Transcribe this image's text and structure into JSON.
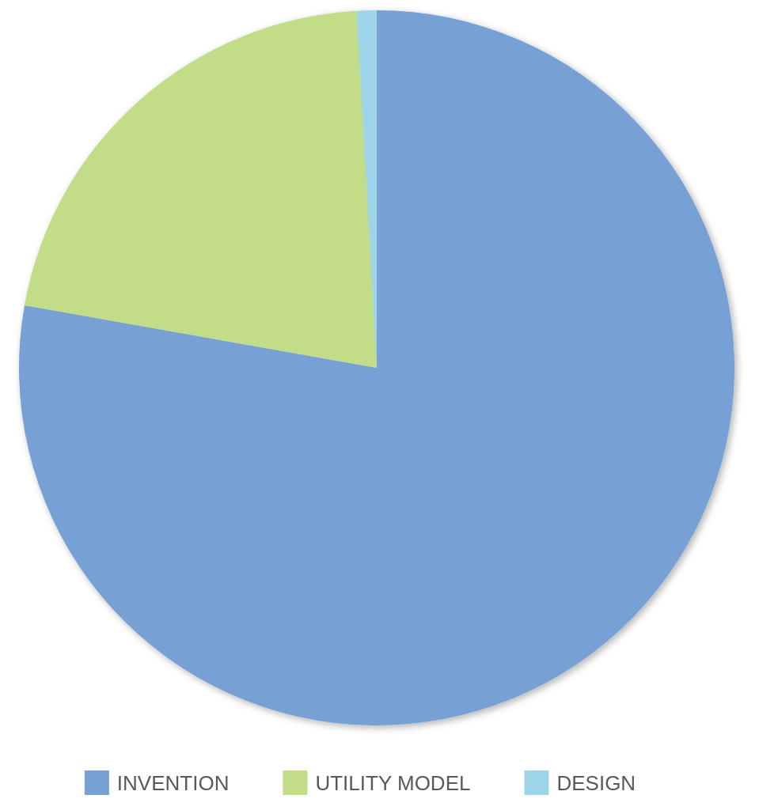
{
  "chart_data": {
    "type": "pie",
    "categories": [
      "INVENTION",
      "UTILITY MODEL",
      "DESIGN"
    ],
    "values": [
      77.8,
      21.3,
      0.9
    ],
    "colors": [
      "#77a1d4",
      "#c3dc88",
      "#9ed5e8"
    ],
    "legend": "bottom"
  }
}
